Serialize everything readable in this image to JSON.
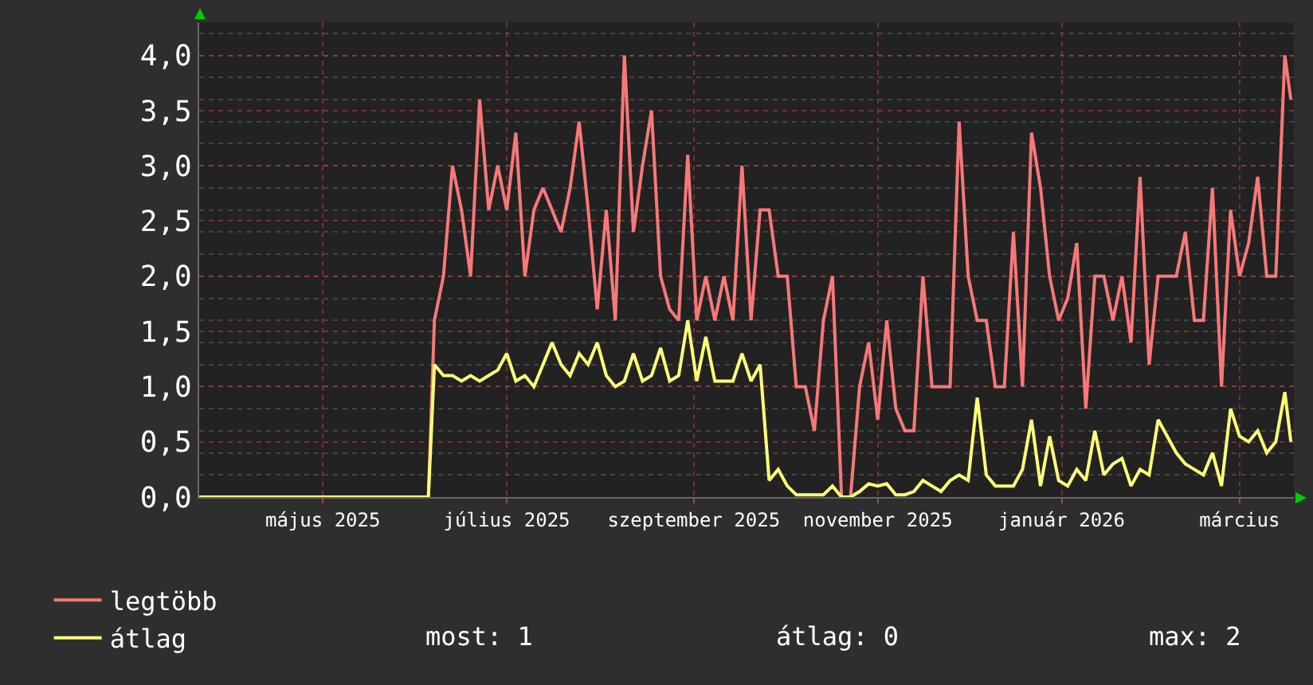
{
  "chart_data": {
    "type": "line",
    "x": [
      "2025-03-21",
      "2025-06-05",
      "2025-06-07",
      "2025-06-10",
      "2025-06-13",
      "2025-06-16",
      "2025-06-19",
      "2025-06-22",
      "2025-06-25",
      "2025-06-28",
      "2025-07-01",
      "2025-07-04",
      "2025-07-07",
      "2025-07-10",
      "2025-07-13",
      "2025-07-16",
      "2025-07-19",
      "2025-07-22",
      "2025-07-25",
      "2025-07-28",
      "2025-07-31",
      "2025-08-03",
      "2025-08-06",
      "2025-08-09",
      "2025-08-12",
      "2025-08-15",
      "2025-08-18",
      "2025-08-21",
      "2025-08-24",
      "2025-08-27",
      "2025-08-30",
      "2025-09-02",
      "2025-09-05",
      "2025-09-08",
      "2025-09-11",
      "2025-09-14",
      "2025-09-17",
      "2025-09-20",
      "2025-09-23",
      "2025-09-26",
      "2025-09-29",
      "2025-10-02",
      "2025-10-05",
      "2025-10-08",
      "2025-10-11",
      "2025-10-14",
      "2025-10-17",
      "2025-10-20",
      "2025-10-23",
      "2025-10-26",
      "2025-10-29",
      "2025-11-01",
      "2025-11-04",
      "2025-11-07",
      "2025-11-10",
      "2025-11-13",
      "2025-11-16",
      "2025-11-19",
      "2025-11-22",
      "2025-11-25",
      "2025-11-28",
      "2025-12-01",
      "2025-12-04",
      "2025-12-07",
      "2025-12-10",
      "2025-12-13",
      "2025-12-16",
      "2025-12-19",
      "2025-12-22",
      "2025-12-25",
      "2025-12-28",
      "2025-12-31",
      "2026-01-03",
      "2026-01-06",
      "2026-01-09",
      "2026-01-12",
      "2026-01-15",
      "2026-01-18",
      "2026-01-21",
      "2026-01-24",
      "2026-01-27",
      "2026-01-30",
      "2026-02-02",
      "2026-02-05",
      "2026-02-08",
      "2026-02-11",
      "2026-02-14",
      "2026-02-17",
      "2026-02-20",
      "2026-02-23",
      "2026-02-26",
      "2026-03-01",
      "2026-03-04",
      "2026-03-07",
      "2026-03-10",
      "2026-03-13",
      "2026-03-16",
      "2026-03-18"
    ],
    "series": [
      {
        "name": "legtöbb",
        "color": "#f87878",
        "values": [
          0,
          0,
          1.6,
          2.0,
          3.0,
          2.6,
          2.0,
          3.6,
          2.6,
          3.0,
          2.6,
          3.3,
          2.0,
          2.6,
          2.8,
          2.6,
          2.4,
          2.8,
          3.4,
          2.6,
          1.7,
          2.6,
          1.6,
          4.0,
          2.4,
          3.0,
          3.5,
          2.0,
          1.7,
          1.6,
          3.1,
          1.6,
          2.0,
          1.6,
          2.0,
          1.6,
          3.0,
          1.6,
          2.6,
          2.6,
          2.0,
          2.0,
          1.0,
          1.0,
          0.6,
          1.6,
          2.0,
          0,
          0,
          1.0,
          1.4,
          0.7,
          1.6,
          0.8,
          0.6,
          0.6,
          2.0,
          1.0,
          1.0,
          1.0,
          3.4,
          2.0,
          1.6,
          1.6,
          1.0,
          1.0,
          2.4,
          1.0,
          3.3,
          2.8,
          2.0,
          1.6,
          1.8,
          2.3,
          0.8,
          2.0,
          2.0,
          1.6,
          2.0,
          1.4,
          2.9,
          1.2,
          2.0,
          2.0,
          2.0,
          2.4,
          1.6,
          1.6,
          2.8,
          1.0,
          2.6,
          2.0,
          2.3,
          2.9,
          2.0,
          2.0,
          4.0,
          3.6
        ]
      },
      {
        "name": "átlag",
        "color": "#ffff77",
        "values": [
          0,
          0,
          1.2,
          1.1,
          1.1,
          1.05,
          1.1,
          1.05,
          1.1,
          1.15,
          1.3,
          1.05,
          1.1,
          1.0,
          1.2,
          1.4,
          1.2,
          1.1,
          1.3,
          1.2,
          1.4,
          1.1,
          1.0,
          1.05,
          1.3,
          1.05,
          1.1,
          1.35,
          1.05,
          1.1,
          1.6,
          1.05,
          1.45,
          1.05,
          1.05,
          1.05,
          1.3,
          1.05,
          1.2,
          0.15,
          0.25,
          0.1,
          0.02,
          0.02,
          0.02,
          0.02,
          0.1,
          0,
          0,
          0.05,
          0.12,
          0.1,
          0.12,
          0.02,
          0.02,
          0.05,
          0.15,
          0.1,
          0.05,
          0.15,
          0.2,
          0.15,
          0.9,
          0.2,
          0.1,
          0.1,
          0.1,
          0.25,
          0.7,
          0.1,
          0.55,
          0.15,
          0.1,
          0.25,
          0.15,
          0.6,
          0.2,
          0.3,
          0.35,
          0.1,
          0.25,
          0.2,
          0.7,
          0.55,
          0.4,
          0.3,
          0.25,
          0.2,
          0.4,
          0.1,
          0.8,
          0.55,
          0.5,
          0.6,
          0.4,
          0.5,
          0.95,
          0.5
        ]
      }
    ],
    "xlim": [
      "2025-03-21",
      "2026-03-19"
    ],
    "xticks": [
      {
        "value": "2025-05-01",
        "label": "május 2025"
      },
      {
        "value": "2025-07-01",
        "label": "július 2025"
      },
      {
        "value": "2025-09-01",
        "label": "szeptember 2025"
      },
      {
        "value": "2025-11-01",
        "label": "november 2025"
      },
      {
        "value": "2026-01-01",
        "label": "január 2026"
      },
      {
        "value": "2026-03-01",
        "label": "március"
      }
    ],
    "ylim": [
      0,
      4.3
    ],
    "yticks": [
      {
        "value": 0,
        "label": "0,0"
      },
      {
        "value": 0.5,
        "label": "0,5"
      },
      {
        "value": 1,
        "label": "1,0"
      },
      {
        "value": 1.5,
        "label": "1,5"
      },
      {
        "value": 2,
        "label": "2,0"
      },
      {
        "value": 2.5,
        "label": "2,5"
      },
      {
        "value": 3,
        "label": "3,0"
      },
      {
        "value": 3.5,
        "label": "3,5"
      },
      {
        "value": 4,
        "label": "4,0"
      }
    ],
    "grid": true,
    "legend": "bottom left",
    "marker": "none",
    "line_style": "solid",
    "annotations": [
      "most: 1",
      "átlag: 0",
      "max: 2"
    ]
  }
}
